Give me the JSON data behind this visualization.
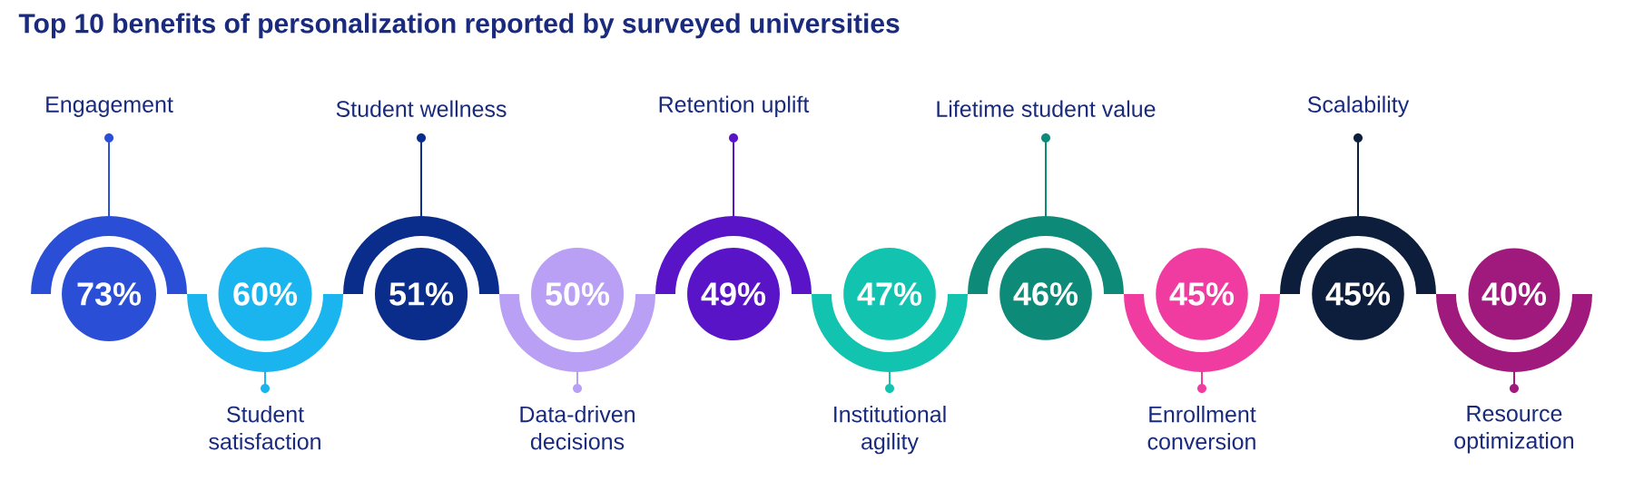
{
  "chart_data": {
    "type": "other",
    "title": "Top 10 benefits of personalization reported by surveyed universities",
    "categories": [
      "Engagement",
      "Student satisfaction",
      "Student wellness",
      "Data-driven decisions",
      "Retention uplift",
      "Institutional agility",
      "Lifetime student value",
      "Enrollment conversion",
      "Scalability",
      "Resource optimization"
    ],
    "values": [
      73,
      60,
      51,
      50,
      49,
      47,
      46,
      45,
      45,
      40
    ],
    "value_labels": [
      "73%",
      "60%",
      "51%",
      "50%",
      "49%",
      "47%",
      "46%",
      "45%",
      "45%",
      "40%"
    ],
    "colors": [
      "#2a4fd6",
      "#1ab4ef",
      "#0a2d8c",
      "#b9a0f5",
      "#5a14c8",
      "#12c4b0",
      "#0e8a78",
      "#f03ca0",
      "#0c1e3c",
      "#a0197d"
    ]
  }
}
